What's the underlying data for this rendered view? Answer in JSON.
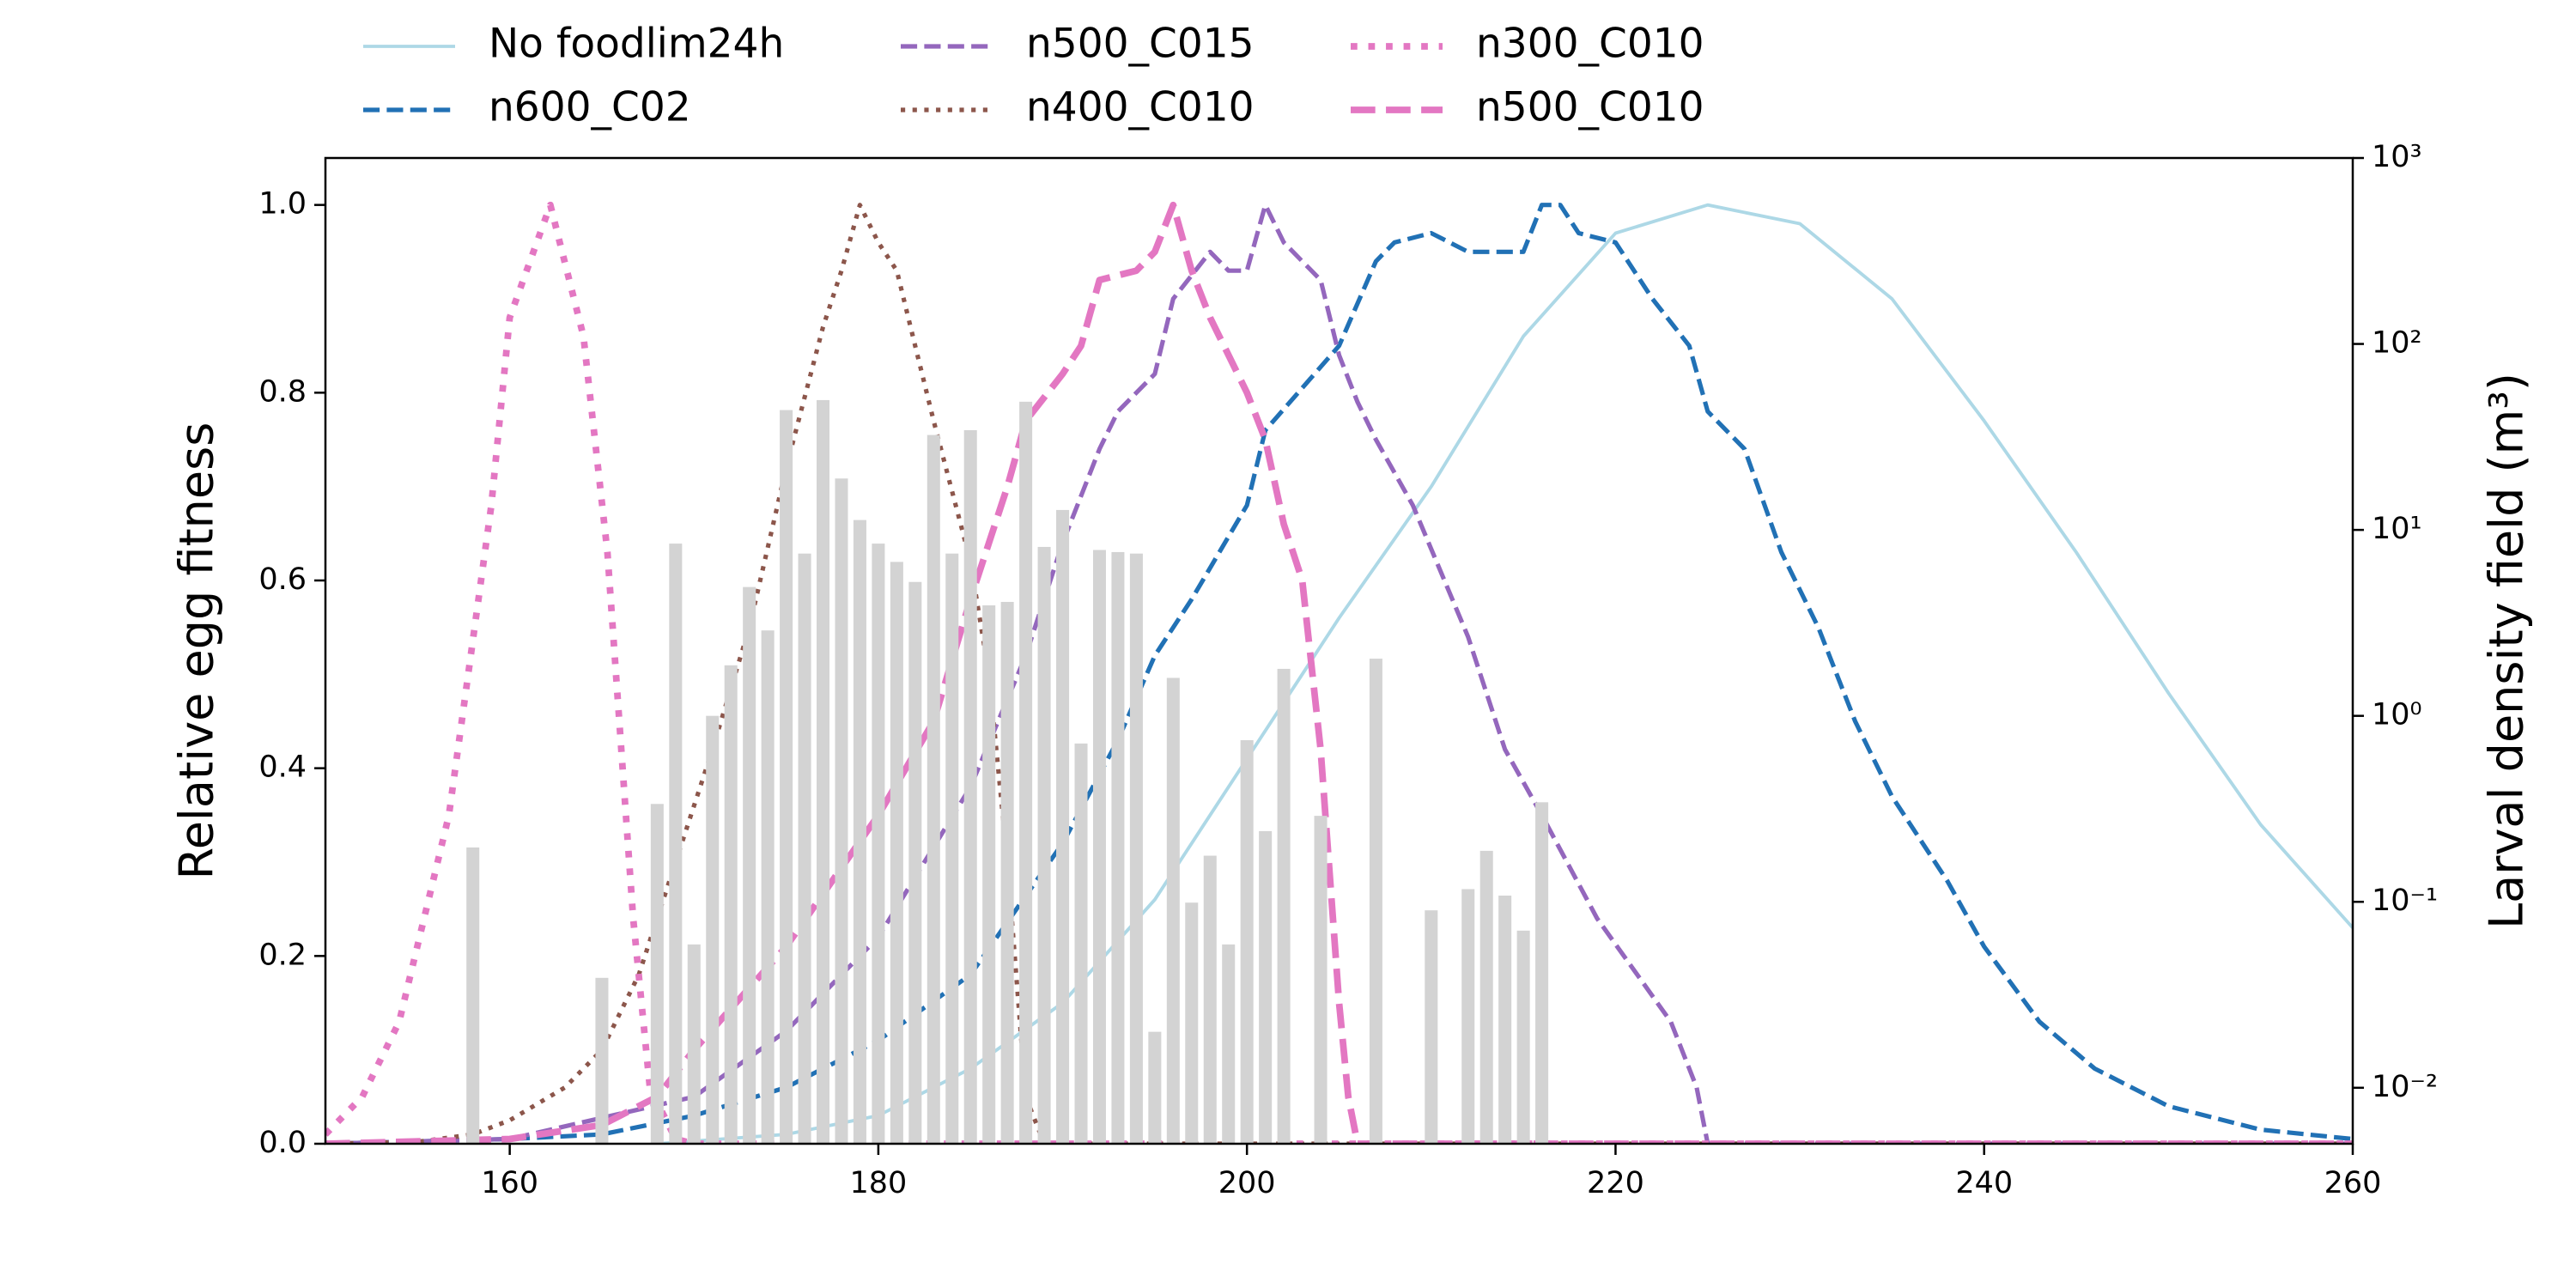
{
  "chart_data": {
    "type": "line",
    "xlabel": null,
    "ylabel": "Relative egg fitness",
    "ylabel_color": "#1f77b4",
    "y2label": "Larval density field (m³)",
    "y2label_color": "#808080",
    "xlim": [
      150,
      260
    ],
    "xticks": [
      160,
      180,
      200,
      220,
      240,
      260
    ],
    "ylim": [
      0,
      1.05
    ],
    "yticks": [
      {
        "value": 0,
        "label": "0.0"
      },
      0.2,
      0.4,
      0.6,
      0.8,
      {
        "value": 1,
        "label": "1.0"
      }
    ],
    "y2scale": "log",
    "y2lim": [
      0.005,
      1000
    ],
    "y2ticks": [
      {
        "value": 0.01,
        "label": "10⁻²"
      },
      {
        "value": 0.1,
        "label": "10⁻¹"
      },
      {
        "value": 1,
        "label": "10⁰"
      },
      {
        "value": 10,
        "label": "10¹"
      },
      {
        "value": 100,
        "label": "10²"
      },
      {
        "value": 1000,
        "label": "10³"
      }
    ],
    "legend": "top",
    "series": [
      {
        "name": "No foodlim24h",
        "color": "#add8e6",
        "style": "solid",
        "linewidth": 1.5,
        "x": [
          168,
          175,
          180,
          185,
          190,
          195,
          200,
          205,
          210,
          215,
          220,
          225,
          230,
          235,
          240,
          245,
          250,
          255,
          260
        ],
        "values": [
          0,
          0.01,
          0.03,
          0.08,
          0.15,
          0.26,
          0.41,
          0.56,
          0.7,
          0.86,
          0.97,
          1.0,
          0.98,
          0.9,
          0.77,
          0.63,
          0.48,
          0.34,
          0.23
        ]
      },
      {
        "name": "n600_C02",
        "color": "#2171b5",
        "style": "dashed",
        "linewidth": 2,
        "x": [
          150,
          160,
          165,
          170,
          175,
          180,
          185,
          190,
          193,
          195,
          197,
          200,
          201,
          205,
          207,
          208,
          210,
          212,
          215,
          216,
          217,
          218,
          220,
          222,
          224,
          225,
          227,
          229,
          231,
          233,
          235,
          238,
          240,
          243,
          246,
          250,
          255,
          260
        ],
        "values": [
          0,
          0.005,
          0.01,
          0.03,
          0.06,
          0.11,
          0.18,
          0.32,
          0.43,
          0.52,
          0.58,
          0.68,
          0.76,
          0.85,
          0.94,
          0.96,
          0.97,
          0.95,
          0.95,
          1.0,
          1.0,
          0.97,
          0.96,
          0.9,
          0.85,
          0.78,
          0.74,
          0.63,
          0.55,
          0.45,
          0.37,
          0.28,
          0.21,
          0.13,
          0.08,
          0.04,
          0.015,
          0.005
        ]
      },
      {
        "name": "n500_C015",
        "color": "#9467bd",
        "style": "dashed",
        "linewidth": 2,
        "x": [
          150,
          160,
          170,
          175,
          180,
          185,
          188,
          190,
          192,
          193,
          195,
          196,
          198,
          199,
          200,
          201,
          202,
          204,
          205,
          206,
          207,
          209,
          212,
          214,
          216,
          219,
          223,
          224.4,
          225,
          260
        ],
        "values": [
          0,
          0.005,
          0.05,
          0.12,
          0.22,
          0.38,
          0.52,
          0.64,
          0.74,
          0.78,
          0.82,
          0.9,
          0.95,
          0.93,
          0.93,
          1.0,
          0.96,
          0.92,
          0.84,
          0.79,
          0.75,
          0.68,
          0.54,
          0.42,
          0.35,
          0.24,
          0.13,
          0.06,
          0,
          0
        ]
      },
      {
        "name": "n400_C010",
        "color": "#8c564b",
        "style": "dotted",
        "linewidth": 2,
        "x": [
          150,
          155,
          158,
          160,
          163,
          165,
          167,
          169,
          171,
          173,
          175,
          177,
          178,
          179,
          180,
          181,
          182,
          183,
          185,
          186,
          187,
          188,
          189,
          260
        ],
        "values": [
          0,
          0.002,
          0.01,
          0.025,
          0.06,
          0.1,
          0.18,
          0.3,
          0.42,
          0.55,
          0.72,
          0.87,
          0.93,
          1.0,
          0.96,
          0.93,
          0.85,
          0.77,
          0.62,
          0.5,
          0.3,
          0.05,
          0,
          0
        ]
      },
      {
        "name": "n300_C010",
        "color": "#e377c2",
        "style": "dotted",
        "linewidth": 3,
        "x": [
          150,
          152,
          154,
          156.7,
          159,
          160,
          162.2,
          164,
          165.3,
          166.7,
          167.6,
          169,
          170,
          260
        ],
        "values": [
          0.01,
          0.05,
          0.13,
          0.35,
          0.68,
          0.88,
          1.0,
          0.86,
          0.63,
          0.24,
          0.06,
          0.005,
          0,
          0
        ]
      },
      {
        "name": "n500_C010",
        "color": "#e377c2",
        "style": "dashed",
        "linewidth": 3,
        "x": [
          150,
          160,
          165,
          168,
          170,
          175,
          180,
          183,
          185,
          187,
          188,
          190,
          191,
          192,
          194,
          195,
          196,
          197,
          198,
          200,
          201,
          202,
          203,
          204,
          205,
          205.5,
          206,
          260
        ],
        "values": [
          0,
          0.005,
          0.02,
          0.05,
          0.1,
          0.21,
          0.35,
          0.45,
          0.58,
          0.7,
          0.77,
          0.82,
          0.85,
          0.92,
          0.93,
          0.95,
          1.0,
          0.93,
          0.88,
          0.8,
          0.75,
          0.66,
          0.6,
          0.42,
          0.15,
          0.05,
          0,
          0
        ]
      }
    ],
    "bars": {
      "color": "#d3d3d3",
      "axis": "y2",
      "width": 0.7,
      "x": [
        158,
        165,
        168,
        169,
        170,
        171,
        172,
        173,
        174,
        175,
        176,
        177,
        178,
        179,
        180,
        181,
        182,
        183,
        184,
        185,
        186,
        187,
        188,
        189,
        190,
        191,
        192,
        193,
        194,
        195,
        196,
        197,
        198,
        199,
        200,
        201,
        202,
        204,
        207,
        210,
        212,
        213,
        214,
        215,
        216
      ],
      "values": [
        0.196,
        0.039,
        0.336,
        8.44,
        0.059,
        1.0,
        1.87,
        4.93,
        2.88,
        44.1,
        7.46,
        49.9,
        18.9,
        11.3,
        8.44,
        6.73,
        5.25,
        32.4,
        7.46,
        34.4,
        3.93,
        4.1,
        48.9,
        8.1,
        12.8,
        0.71,
        7.8,
        7.6,
        7.46,
        0.02,
        1.6,
        0.099,
        0.177,
        0.059,
        0.74,
        0.24,
        1.79,
        0.29,
        2.03,
        0.09,
        0.117,
        0.188,
        0.108,
        0.07,
        0.343
      ]
    }
  }
}
